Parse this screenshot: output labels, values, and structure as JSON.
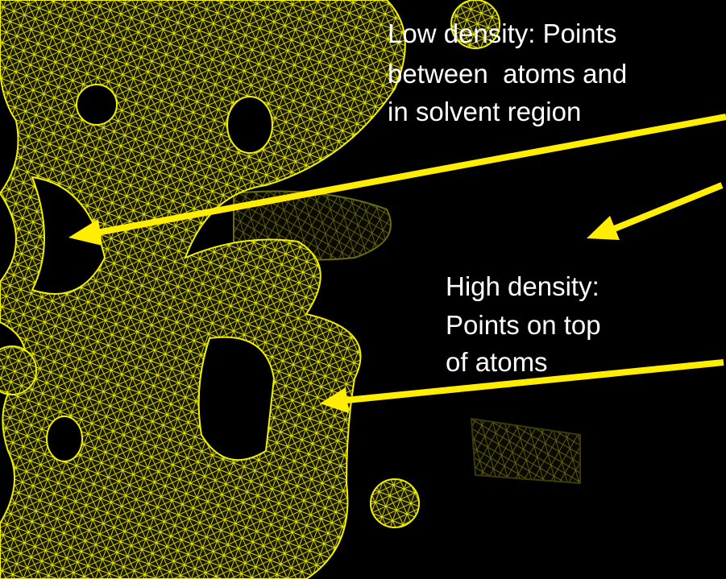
{
  "annotations": {
    "low_density": {
      "lines": [
        "Low density: Points",
        "between  atoms and",
        "in solvent region"
      ]
    },
    "high_density": {
      "lines": [
        "High density:",
        "Points on top",
        "of atoms"
      ]
    }
  }
}
